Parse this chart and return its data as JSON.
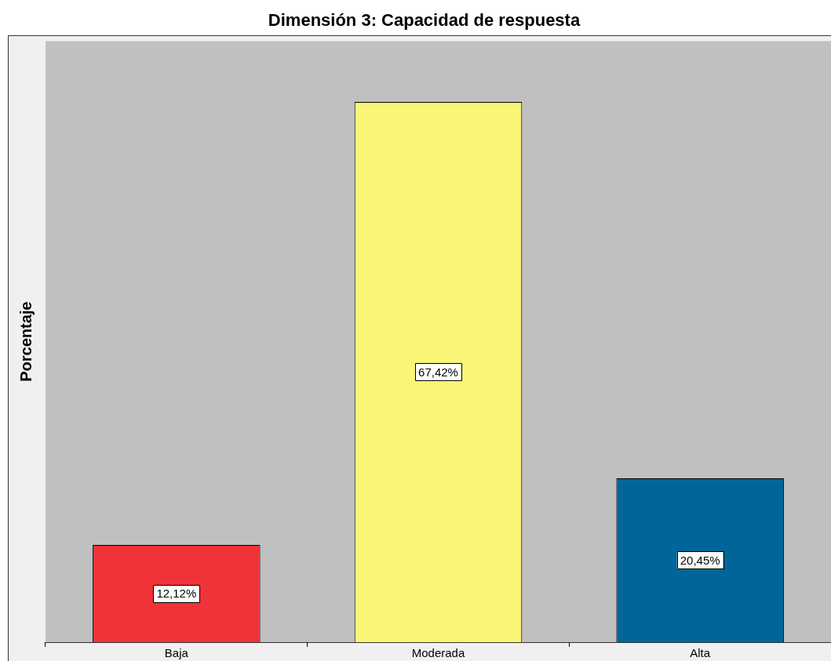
{
  "chart_data": {
    "type": "bar",
    "title": "Dimensión 3: Capacidad de respuesta",
    "ylabel": "Porcentaje",
    "categories": [
      "Baja",
      "Moderada",
      "Alta"
    ],
    "values": [
      12.12,
      67.42,
      20.45
    ],
    "colors": [
      "#ef3339",
      "#f9f577",
      "#006699"
    ],
    "value_labels": [
      "12,12%",
      "67,42%",
      "20,45%"
    ],
    "ylim": [
      0,
      75
    ],
    "tick_labels": "x",
    "grid": false,
    "legend": false
  }
}
